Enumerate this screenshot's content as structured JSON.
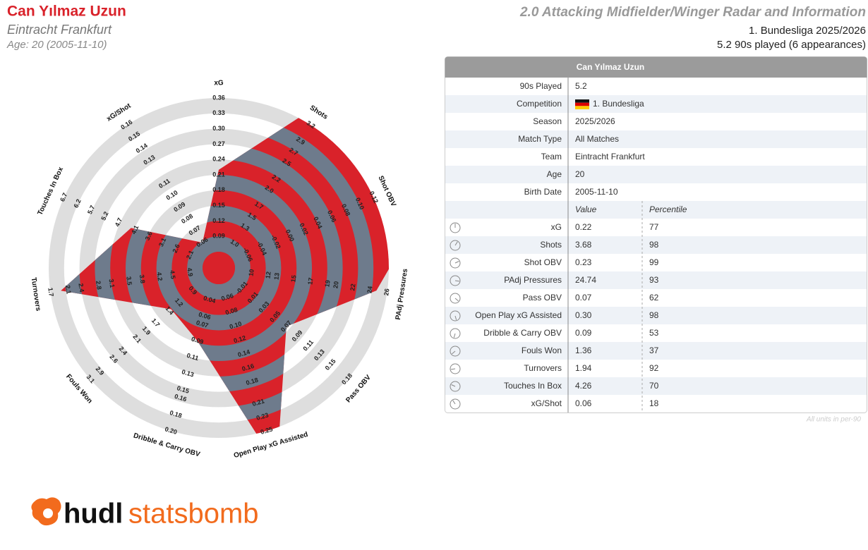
{
  "header": {
    "player": "Can Yılmaz Uzun",
    "team": "Eintracht Frankfurt",
    "age_line": "Age: 20 (2005-11-10)",
    "title": "2.0 Attacking Midfielder/Winger Radar and Information",
    "competition_line": "1. Bundesliga 2025/2026",
    "played_line": "5.2 90s played (6 appearances)"
  },
  "chart_data": {
    "type": "radar",
    "categories": [
      "xG",
      "Shots",
      "Shot OBV",
      "PAdj Pressures",
      "Pass OBV",
      "Open Play xG Assisted",
      "Dribble & Carry OBV",
      "Fouls Won",
      "Turnovers",
      "Touches In Box",
      "xG/Shot"
    ],
    "values": [
      0.22,
      3.68,
      0.23,
      24.74,
      0.07,
      0.3,
      0.09,
      1.36,
      1.94,
      4.26,
      0.06
    ],
    "value_labels": [
      "0.22",
      "3.68",
      "0.23",
      "24.74",
      "0.07",
      "0.30",
      "0.09",
      "1.36",
      "1.94",
      "4.26",
      "0.06"
    ],
    "color": "#d9222a",
    "band_color": "#6e7b8c",
    "ring_color": "#dedede",
    "axes": [
      {
        "lim": [
          0.06,
          0.36
        ],
        "ticks": [
          0.09,
          0.12,
          0.15,
          0.18,
          0.21,
          0.24,
          0.27,
          {
            "value": 0.3,
            "label": "0.30"
          },
          0.33,
          0.36
        ]
      },
      {
        "lim": [
          0.8,
          3.2
        ],
        "ticks": [
          {
            "value": 1,
            "label": "1.0"
          },
          1.3,
          1.5,
          1.7,
          {
            "value": 2,
            "label": "2.0"
          },
          2.2,
          2.5,
          2.7,
          2.9,
          3.2
        ]
      },
      {
        "lim": [
          -0.08,
          0.12
        ],
        "ticks": [
          -0.06,
          -0.04,
          -0.02,
          {
            "value": 0,
            "label": "0.00"
          },
          0.02,
          0.04,
          0.06,
          0.08,
          {
            "value": 0.1,
            "label": "0.10"
          },
          0.12
        ]
      },
      {
        "lim": [
          8,
          26
        ],
        "ticks": [
          10,
          12,
          13,
          15,
          17,
          19,
          20,
          22,
          24,
          26
        ]
      },
      {
        "lim": [
          -0.03,
          0.18
        ],
        "ticks": [
          -0.01,
          0.01,
          0.03,
          0.05,
          0.07,
          0.09,
          0.11,
          0.13,
          0.15,
          0.18
        ]
      },
      {
        "lim": [
          0.04,
          0.25
        ],
        "ticks": [
          0.06,
          0.08,
          {
            "value": 0.1,
            "label": "0.10"
          },
          0.12,
          0.14,
          0.16,
          0.18,
          0.21,
          0.23,
          0.25
        ]
      },
      {
        "lim": [
          0.02,
          0.2
        ],
        "ticks": [
          0.04,
          0.06,
          0.07,
          0.09,
          0.11,
          0.13,
          0.15,
          0.16,
          0.18,
          {
            "value": 0.2,
            "label": "0.20"
          }
        ]
      },
      {
        "lim": [
          0.6,
          3.1
        ],
        "ticks": [
          0.9,
          1.2,
          1.4,
          1.7,
          1.9,
          2.1,
          2.4,
          2.6,
          2.9,
          3.1
        ]
      },
      {
        "lim": [
          5.2,
          1.7
        ],
        "ticks": [
          4.9,
          4.5,
          4.2,
          3.8,
          3.5,
          3.1,
          2.8,
          2.4,
          2.1,
          1.7
        ]
      },
      {
        "lim": [
          1.6,
          6.7
        ],
        "ticks": [
          2.1,
          2.6,
          3.1,
          3.6,
          4.1,
          4.7,
          5.2,
          5.7,
          6.2,
          6.7
        ]
      },
      {
        "lim": [
          0.05,
          0.16
        ],
        "ticks": [
          0.06,
          0.07,
          0.08,
          0.09,
          {
            "value": 0.1,
            "label": "0.10"
          },
          0.11,
          0.13,
          0.14,
          0.15,
          0.16
        ]
      }
    ]
  },
  "table": {
    "info": [
      {
        "label": "90s Played",
        "value": "5.2"
      },
      {
        "label": "Competition",
        "value": "1. Bundesliga"
      },
      {
        "label": "Season",
        "value": "2025/2026"
      },
      {
        "label": "Match Type",
        "value": "All Matches"
      },
      {
        "label": "Team",
        "value": "Eintracht Frankfurt"
      },
      {
        "label": "Age",
        "value": "20"
      },
      {
        "label": "Birth Date",
        "value": "2005-11-10"
      }
    ],
    "columns": [
      "Value",
      "Percentile"
    ],
    "percentiles": [
      77,
      98,
      99,
      93,
      62,
      98,
      53,
      37,
      92,
      70,
      18
    ],
    "percentile_colors": [
      "#a0522d",
      "#7a0f0f",
      "#7a0f0f",
      "#8a1515",
      "#c8741c",
      "#7a0f0f",
      "#e3b21c",
      "#2f86b0",
      "#8a1515",
      "#b8621e",
      "#1e3350"
    ],
    "footnote": "All units in per-90"
  },
  "logo": {
    "bold": "hudl",
    "light": "statsbomb"
  }
}
